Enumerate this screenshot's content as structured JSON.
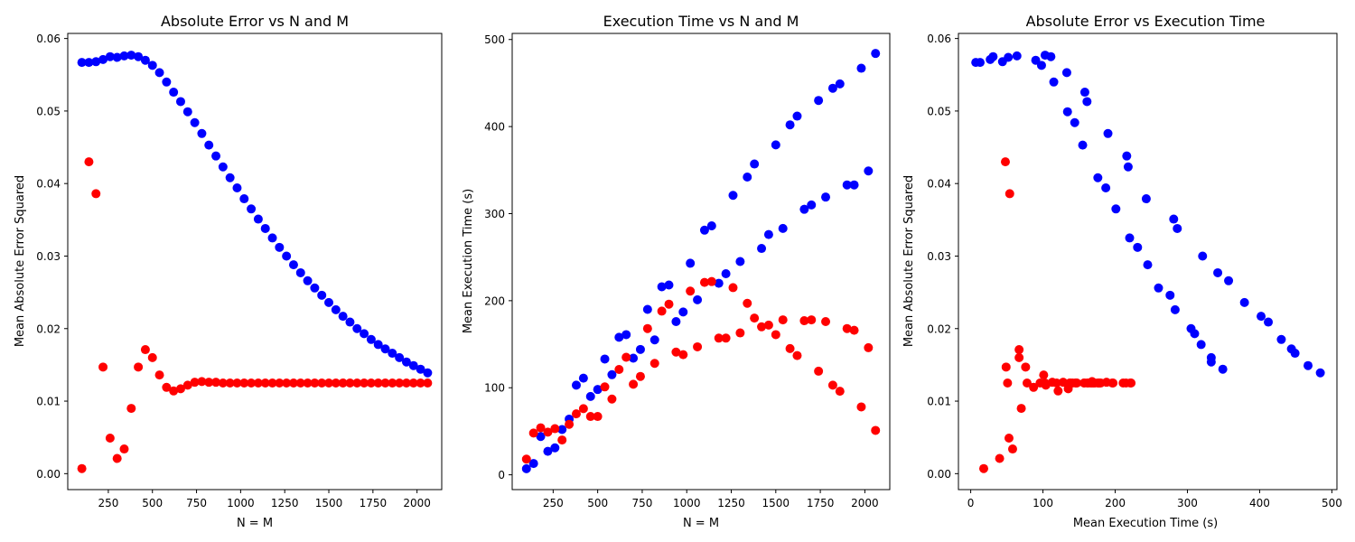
{
  "colors": {
    "series_a": "#0000ff",
    "series_b": "#ff0000"
  },
  "chart_data": [
    {
      "type": "scatter",
      "title": "Absolute Error vs N and M",
      "xlabel": "N = M",
      "ylabel": "Mean Absolute Error Squared",
      "xlim": [
        20,
        2140
      ],
      "ylim": [
        -0.0022,
        0.0607
      ],
      "xticks": [
        250,
        500,
        750,
        1000,
        1250,
        1500,
        1750,
        2000
      ],
      "xtick_labels": [
        "250",
        "500",
        "750",
        "1000",
        "1250",
        "1500",
        "1750",
        "2000"
      ],
      "yticks": [
        0,
        0.01,
        0.02,
        0.03,
        0.04,
        0.05,
        0.06
      ],
      "ytick_labels": [
        "0.00",
        "0.01",
        "0.02",
        "0.03",
        "0.04",
        "0.05",
        "0.06"
      ],
      "grid": false,
      "series": [
        {
          "color": "#0000ff",
          "x": [
            100,
            140,
            180,
            220,
            260,
            300,
            340,
            380,
            420,
            460,
            500,
            540,
            580,
            620,
            660,
            700,
            740,
            780,
            820,
            860,
            900,
            940,
            980,
            1020,
            1060,
            1100,
            1140,
            1180,
            1220,
            1260,
            1300,
            1340,
            1380,
            1420,
            1460,
            1500,
            1540,
            1580,
            1620,
            1660,
            1700,
            1740,
            1780,
            1820,
            1860,
            1900,
            1940,
            1980,
            2020,
            2060
          ],
          "y": [
            0.0567,
            0.0567,
            0.0568,
            0.0571,
            0.0575,
            0.0574,
            0.0576,
            0.0577,
            0.0575,
            0.057,
            0.0563,
            0.0553,
            0.054,
            0.0526,
            0.0513,
            0.0499,
            0.0484,
            0.0469,
            0.0453,
            0.0438,
            0.0423,
            0.0408,
            0.0394,
            0.0379,
            0.0365,
            0.0351,
            0.0338,
            0.0325,
            0.0312,
            0.03,
            0.0288,
            0.0277,
            0.0266,
            0.0256,
            0.0246,
            0.0236,
            0.0226,
            0.0217,
            0.0209,
            0.02,
            0.0193,
            0.0185,
            0.0178,
            0.0172,
            0.0166,
            0.016,
            0.0154,
            0.0149,
            0.0144,
            0.0139
          ]
        },
        {
          "color": "#ff0000",
          "x": [
            100,
            140,
            180,
            220,
            260,
            300,
            340,
            380,
            420,
            460,
            500,
            540,
            580,
            620,
            660,
            700,
            740,
            780,
            820,
            860,
            900,
            940,
            980,
            1020,
            1060,
            1100,
            1140,
            1180,
            1220,
            1260,
            1300,
            1340,
            1380,
            1420,
            1460,
            1500,
            1540,
            1580,
            1620,
            1660,
            1700,
            1740,
            1780,
            1820,
            1860,
            1900,
            1940,
            1980,
            2020,
            2060
          ],
          "y": [
            0.0007,
            0.043,
            0.0386,
            0.0147,
            0.0049,
            0.0021,
            0.0034,
            0.009,
            0.0147,
            0.0171,
            0.016,
            0.0136,
            0.0119,
            0.0114,
            0.0117,
            0.0122,
            0.0126,
            0.0127,
            0.0126,
            0.0126,
            0.0125,
            0.0125,
            0.0125,
            0.0125,
            0.0125,
            0.0125,
            0.0125,
            0.0125,
            0.0125,
            0.0125,
            0.0125,
            0.0125,
            0.0125,
            0.0125,
            0.0125,
            0.0125,
            0.0125,
            0.0125,
            0.0125,
            0.0125,
            0.0125,
            0.0125,
            0.0125,
            0.0125,
            0.0125,
            0.0125,
            0.0125,
            0.0125,
            0.0125,
            0.0125
          ]
        }
      ]
    },
    {
      "type": "scatter",
      "title": "Execution Time vs N and M",
      "xlabel": "N = M",
      "ylabel": "Mean Execution Time (s)",
      "xlim": [
        20,
        2140
      ],
      "ylim": [
        -17,
        507
      ],
      "xticks": [
        250,
        500,
        750,
        1000,
        1250,
        1500,
        1750,
        2000
      ],
      "xtick_labels": [
        "250",
        "500",
        "750",
        "1000",
        "1250",
        "1500",
        "1750",
        "2000"
      ],
      "yticks": [
        0,
        100,
        200,
        300,
        400,
        500
      ],
      "ytick_labels": [
        "0",
        "100",
        "200",
        "300",
        "400",
        "500"
      ],
      "grid": false,
      "series": [
        {
          "color": "#0000ff",
          "x": [
            100,
            140,
            180,
            220,
            260,
            300,
            340,
            380,
            420,
            460,
            500,
            540,
            580,
            620,
            660,
            700,
            740,
            780,
            820,
            860,
            900,
            940,
            980,
            1020,
            1060,
            1100,
            1140,
            1180,
            1220,
            1260,
            1300,
            1340,
            1380,
            1420,
            1460,
            1500,
            1540,
            1580,
            1620,
            1660,
            1700,
            1740,
            1780,
            1820,
            1860,
            1900,
            1940,
            1980,
            2020,
            2060
          ],
          "y": [
            7,
            13,
            44,
            27,
            31,
            52,
            64,
            103,
            111,
            90,
            98,
            133,
            115,
            158,
            161,
            134,
            144,
            190,
            155,
            216,
            218,
            176,
            187,
            243,
            201,
            281,
            286,
            220,
            231,
            321,
            245,
            342,
            357,
            260,
            276,
            379,
            283,
            402,
            412,
            305,
            310,
            430,
            319,
            444,
            449,
            333,
            333,
            467,
            349,
            484
          ]
        },
        {
          "color": "#ff0000",
          "x": [
            100,
            140,
            180,
            220,
            260,
            300,
            340,
            380,
            420,
            460,
            500,
            540,
            580,
            620,
            660,
            700,
            740,
            780,
            820,
            860,
            900,
            940,
            980,
            1020,
            1060,
            1100,
            1140,
            1180,
            1220,
            1260,
            1300,
            1340,
            1380,
            1420,
            1460,
            1500,
            1540,
            1580,
            1620,
            1660,
            1700,
            1740,
            1780,
            1820,
            1860,
            1900,
            1940,
            1980,
            2020,
            2060
          ],
          "y": [
            18,
            48,
            54,
            49,
            53,
            40,
            58,
            70,
            76,
            67,
            67,
            101,
            87,
            121,
            135,
            104,
            113,
            168,
            128,
            188,
            196,
            141,
            138,
            211,
            147,
            221,
            222,
            157,
            157,
            215,
            163,
            197,
            180,
            170,
            172,
            161,
            178,
            145,
            137,
            177,
            178,
            119,
            176,
            103,
            96,
            168,
            166,
            78,
            146,
            51
          ]
        }
      ]
    },
    {
      "type": "scatter",
      "title": "Absolute Error vs Execution Time",
      "xlabel": "Mean Execution Time (s)",
      "ylabel": "Mean Absolute Error Squared",
      "xlim": [
        -17,
        507
      ],
      "ylim": [
        -0.0022,
        0.0607
      ],
      "xticks": [
        0,
        100,
        200,
        300,
        400,
        500
      ],
      "xtick_labels": [
        "0",
        "100",
        "200",
        "300",
        "400",
        "500"
      ],
      "yticks": [
        0,
        0.01,
        0.02,
        0.03,
        0.04,
        0.05,
        0.06
      ],
      "ytick_labels": [
        "0.00",
        "0.01",
        "0.02",
        "0.03",
        "0.04",
        "0.05",
        "0.06"
      ],
      "grid": false,
      "series": [
        {
          "color": "#0000ff",
          "x": [
            7,
            13,
            44,
            27,
            31,
            52,
            64,
            103,
            111,
            90,
            98,
            133,
            115,
            158,
            161,
            134,
            144,
            190,
            155,
            216,
            218,
            176,
            187,
            243,
            201,
            281,
            286,
            220,
            231,
            321,
            245,
            342,
            357,
            260,
            276,
            379,
            283,
            402,
            412,
            305,
            310,
            430,
            319,
            444,
            449,
            333,
            333,
            467,
            349,
            484
          ],
          "y": [
            0.0567,
            0.0567,
            0.0568,
            0.0571,
            0.0575,
            0.0574,
            0.0576,
            0.0577,
            0.0575,
            0.057,
            0.0563,
            0.0553,
            0.054,
            0.0526,
            0.0513,
            0.0499,
            0.0484,
            0.0469,
            0.0453,
            0.0438,
            0.0423,
            0.0408,
            0.0394,
            0.0379,
            0.0365,
            0.0351,
            0.0338,
            0.0325,
            0.0312,
            0.03,
            0.0288,
            0.0277,
            0.0266,
            0.0256,
            0.0246,
            0.0236,
            0.0226,
            0.0217,
            0.0209,
            0.02,
            0.0193,
            0.0185,
            0.0178,
            0.0172,
            0.0166,
            0.016,
            0.0154,
            0.0149,
            0.0144,
            0.0139
          ]
        },
        {
          "color": "#ff0000",
          "x": [
            18,
            48,
            54,
            49,
            53,
            40,
            58,
            70,
            76,
            67,
            67,
            101,
            87,
            121,
            135,
            104,
            113,
            168,
            128,
            188,
            196,
            141,
            138,
            211,
            147,
            221,
            222,
            157,
            157,
            215,
            163,
            197,
            180,
            170,
            172,
            161,
            178,
            145,
            137,
            177,
            178,
            119,
            176,
            103,
            96,
            168,
            166,
            78,
            146,
            51
          ],
          "y": [
            0.0007,
            0.043,
            0.0386,
            0.0147,
            0.0049,
            0.0021,
            0.0034,
            0.009,
            0.0147,
            0.0171,
            0.016,
            0.0136,
            0.0119,
            0.0114,
            0.0117,
            0.0122,
            0.0126,
            0.0127,
            0.0126,
            0.0126,
            0.0125,
            0.0125,
            0.0125,
            0.0125,
            0.0125,
            0.0125,
            0.0125,
            0.0125,
            0.0125,
            0.0125,
            0.0125,
            0.0125,
            0.0125,
            0.0125,
            0.0125,
            0.0125,
            0.0125,
            0.0125,
            0.0125,
            0.0125,
            0.0125,
            0.0125,
            0.0125,
            0.0125,
            0.0125,
            0.0125,
            0.0125,
            0.0125,
            0.0125,
            0.0125
          ]
        }
      ]
    }
  ]
}
